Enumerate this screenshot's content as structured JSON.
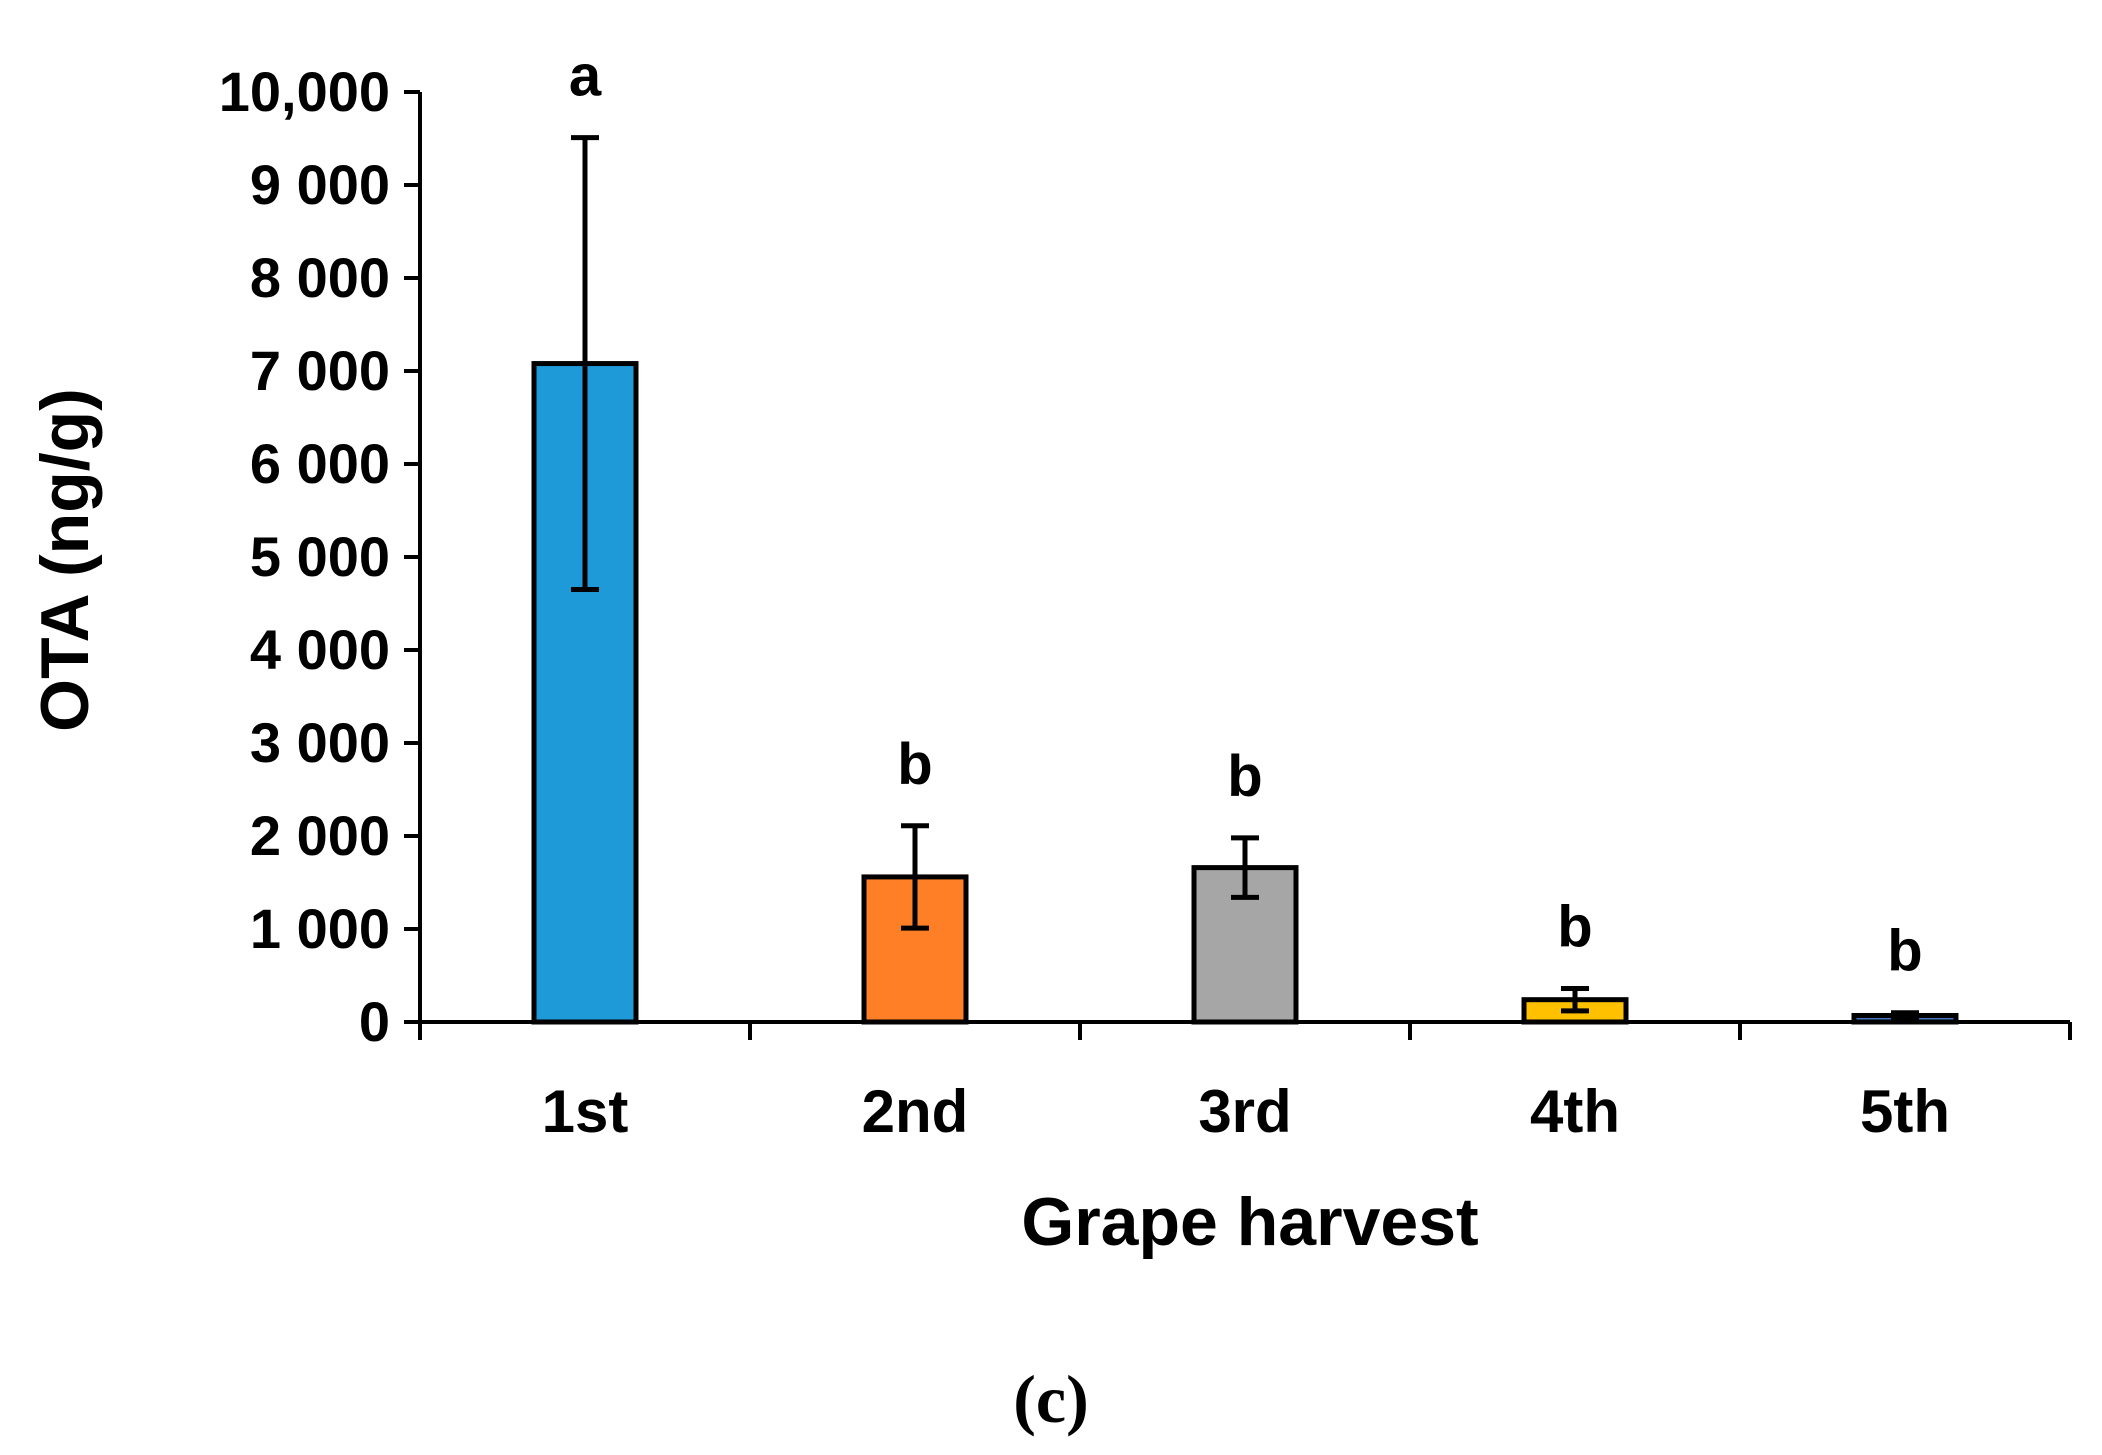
{
  "chart_data": {
    "type": "bar",
    "title": "",
    "xlabel": "Grape harvest",
    "ylabel": "OTA (ng/g)",
    "categories": [
      "1st",
      "2nd",
      "3rd",
      "4th",
      "5th"
    ],
    "values": [
      7080,
      1560,
      1660,
      240,
      70
    ],
    "error": [
      2430,
      550,
      320,
      120,
      30
    ],
    "significance": [
      "a",
      "b",
      "b",
      "b",
      "b"
    ],
    "colors": [
      "#1F9AD9",
      "#FF7F27",
      "#A6A6A6",
      "#FFC000",
      "#4472C4"
    ],
    "ylim": [
      0,
      10000
    ],
    "yticks": [
      0,
      1000,
      2000,
      3000,
      4000,
      5000,
      6000,
      7000,
      8000,
      9000,
      10000
    ],
    "ytick_labels": [
      "0",
      "1 000",
      "2 000",
      "3 000",
      "4 000",
      "5 000",
      "6 000",
      "7 000",
      "8 000",
      "9 000",
      "10,000"
    ],
    "grid": false
  },
  "panel_label": "(c)"
}
